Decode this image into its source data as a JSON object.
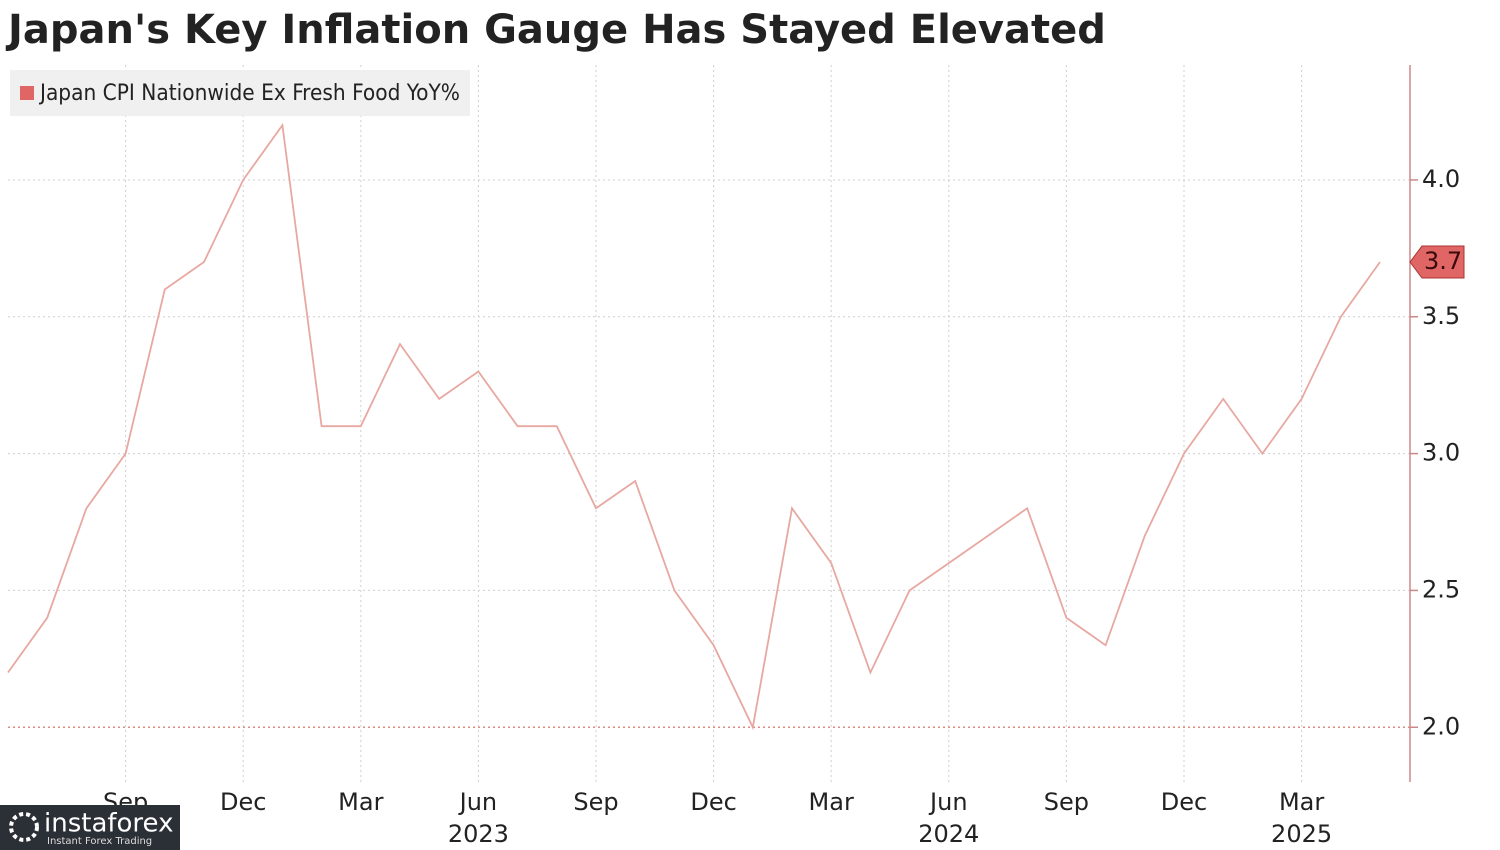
{
  "chart_data": {
    "type": "line",
    "title": "Japan's Key Inflation Gauge Has Stayed Elevated",
    "categories": [
      null,
      null,
      null,
      "Sep",
      null,
      null,
      "Dec",
      null,
      null,
      "Mar",
      null,
      null,
      "Jun",
      null,
      null,
      "Sep",
      null,
      null,
      "Dec",
      null,
      null,
      "Mar",
      null,
      null,
      "Jun",
      null,
      null,
      "Sep",
      null,
      null,
      "Dec",
      null,
      null,
      "Mar",
      null,
      null
    ],
    "category_years": [
      null,
      null,
      null,
      null,
      null,
      null,
      null,
      null,
      null,
      null,
      null,
      null,
      "2023",
      null,
      null,
      null,
      null,
      null,
      null,
      null,
      null,
      null,
      null,
      null,
      "2024",
      null,
      null,
      null,
      null,
      null,
      null,
      null,
      null,
      "2025",
      null,
      null
    ],
    "series": [
      {
        "name": "Japan CPI Nationwide Ex Fresh Food YoY%",
        "color": "#e06666",
        "line_color": "#e8a8a2",
        "values": [
          2.2,
          2.4,
          2.8,
          3.0,
          3.6,
          3.7,
          4.0,
          4.2,
          3.1,
          3.1,
          3.4,
          3.2,
          3.3,
          3.1,
          3.1,
          2.8,
          2.9,
          2.5,
          2.3,
          2.0,
          2.8,
          2.6,
          2.2,
          2.5,
          2.6,
          2.7,
          2.8,
          2.4,
          2.3,
          2.7,
          3.0,
          3.2,
          3.0,
          3.2,
          3.5,
          3.7
        ]
      }
    ],
    "ylim": [
      1.8,
      4.42
    ],
    "yticks": [
      {
        "value": 2,
        "label": "2.0"
      },
      {
        "value": 2.5,
        "label": "2.5"
      },
      {
        "value": 3,
        "label": "3.0"
      },
      {
        "value": 3.5,
        "label": "3.5"
      },
      {
        "value": 4,
        "label": "4.0"
      }
    ],
    "reference_line": {
      "value": 2,
      "color": "#e08a80"
    },
    "grid": true,
    "legend": "top-left",
    "watermark": {
      "brand": "instaforex",
      "tagline": "Instant Forex Trading"
    }
  }
}
